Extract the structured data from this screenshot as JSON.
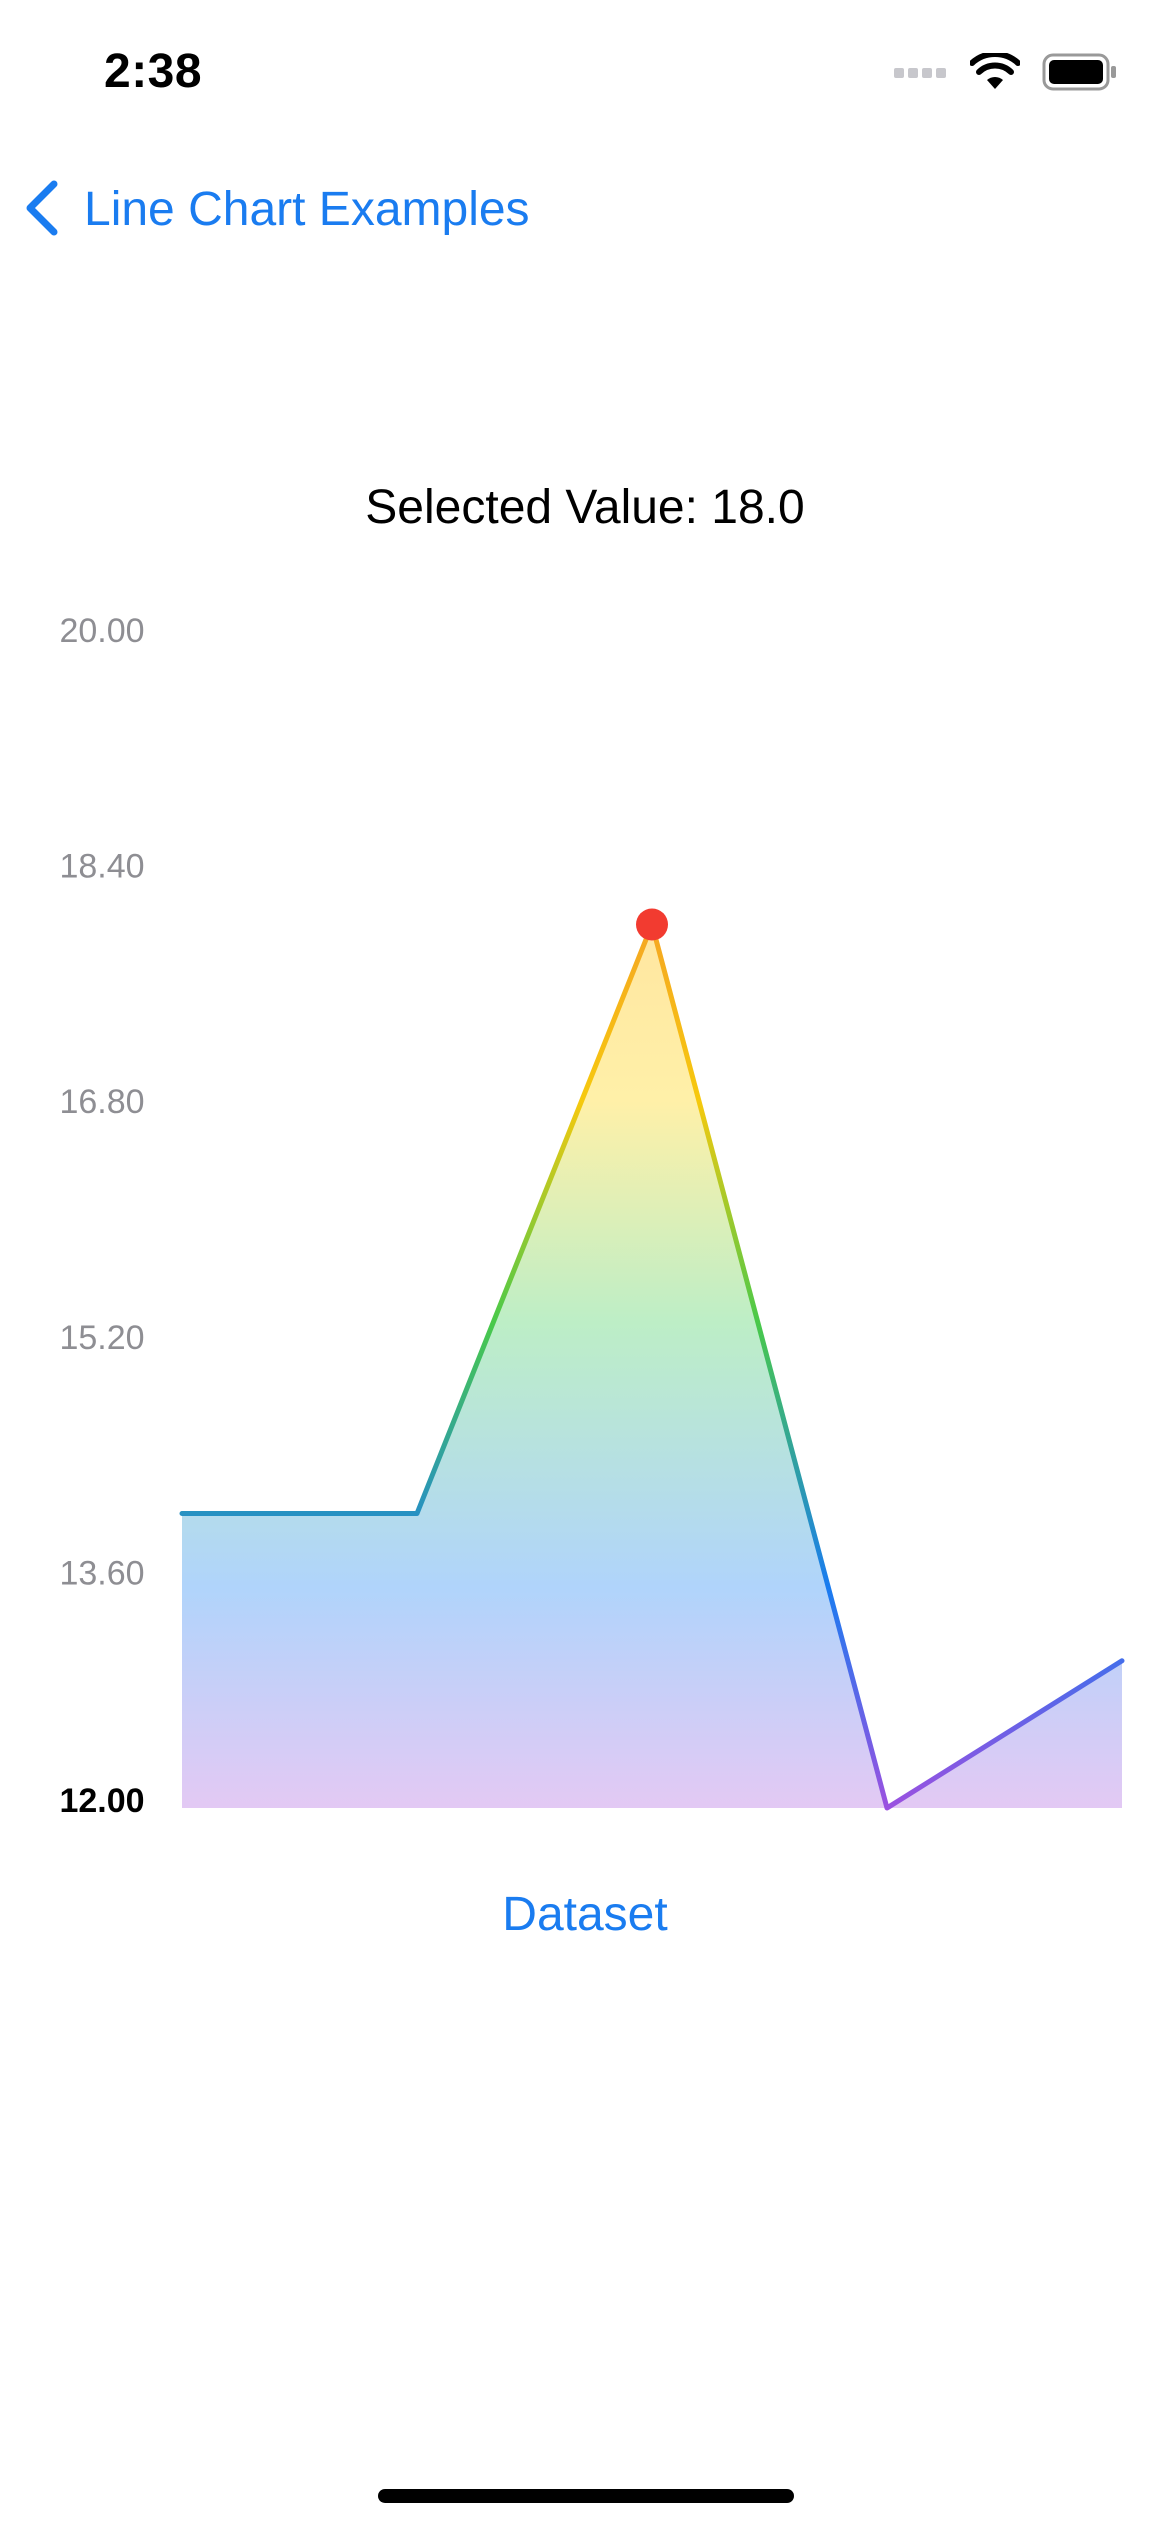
{
  "status_bar": {
    "time": "2:38",
    "icons": [
      "cellular-signal-icon",
      "wifi-icon",
      "battery-icon"
    ]
  },
  "nav": {
    "back_label": "Line Chart Examples",
    "back_icon": "chevron-left-icon"
  },
  "selected_value_text": "Selected Value: 18.0",
  "dataset_button_label": "Dataset",
  "colors": {
    "accent": "#1a7cf0",
    "selected_point": "#f23b30"
  },
  "chart_data": {
    "type": "area",
    "x": [
      0,
      1,
      2,
      3,
      4
    ],
    "values": [
      14.0,
      14.0,
      18.0,
      12.0,
      13.0
    ],
    "ylim": [
      12.0,
      20.0
    ],
    "y_ticks": [
      "20.00",
      "18.40",
      "16.80",
      "15.20",
      "13.60",
      "12.00"
    ],
    "y_tick_values": [
      20.0,
      18.4,
      16.8,
      15.2,
      13.6,
      12.0
    ],
    "selected_index": 2,
    "title": "",
    "xlabel": "",
    "ylabel": "",
    "grid": false,
    "gradient_colors": [
      "#f5a623",
      "#f6c90e",
      "#49c94a",
      "#1a7cf0",
      "#9b51e0"
    ]
  }
}
